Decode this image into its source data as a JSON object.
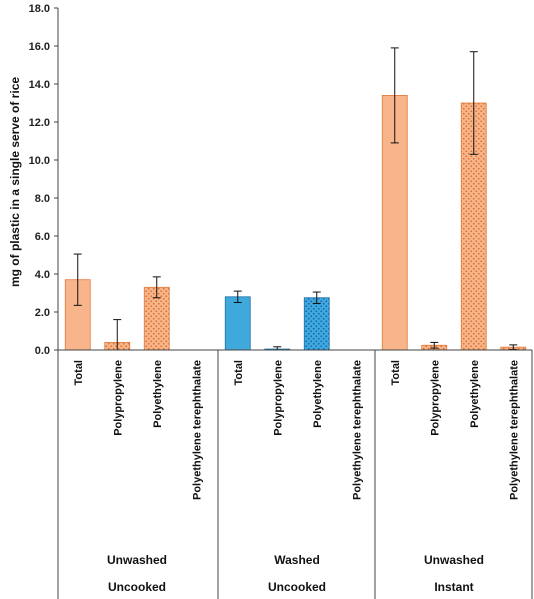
{
  "colors": {
    "orange_fill": "#f8b48a",
    "orange_edge": "#e07a3c",
    "orange_dot": "#d9722e",
    "blue_fill": "#3fa9dc",
    "blue_edge": "#1f6fa8",
    "blue_dot": "#1565b8",
    "axis": "#444444",
    "error_bar": "#111111"
  },
  "chart_data": {
    "type": "bar",
    "title": "",
    "ylabel": "mg of plastic in a single serve of rice",
    "ylim": [
      0,
      18
    ],
    "yticks": [
      "0.0",
      "2.0",
      "4.0",
      "6.0",
      "8.0",
      "10.0",
      "12.0",
      "14.0",
      "16.0",
      "18.0"
    ],
    "grid": false,
    "legend": "none",
    "groups": [
      {
        "label_top": "Unwashed",
        "label_bottom": "Uncooked",
        "bars": [
          {
            "category": "Total",
            "value": 3.7,
            "error": 1.35,
            "color": "orange",
            "pattern": "solid"
          },
          {
            "category": "Polypropylene",
            "value": 0.4,
            "error": 1.2,
            "color": "orange",
            "pattern": "dotted"
          },
          {
            "category": "Polyethylene",
            "value": 3.3,
            "error": 0.55,
            "color": "orange",
            "pattern": "dotted"
          },
          {
            "category": "Polyethylene terephthalate",
            "value": 0,
            "error": 0,
            "color": "orange",
            "pattern": "dotted"
          }
        ]
      },
      {
        "label_top": "Washed",
        "label_bottom": "Uncooked",
        "bars": [
          {
            "category": "Total",
            "value": 2.8,
            "error": 0.3,
            "color": "blue",
            "pattern": "solid"
          },
          {
            "category": "Polypropylene",
            "value": 0.05,
            "error": 0.12,
            "color": "blue",
            "pattern": "dotted"
          },
          {
            "category": "Polyethylene",
            "value": 2.75,
            "error": 0.3,
            "color": "blue",
            "pattern": "dotted"
          },
          {
            "category": "Polyethylene terephthalate",
            "value": 0,
            "error": 0,
            "color": "blue",
            "pattern": "dotted"
          }
        ]
      },
      {
        "label_top": "Unwashed",
        "label_bottom": "Instant",
        "bars": [
          {
            "category": "Total",
            "value": 13.4,
            "error": 2.5,
            "color": "orange",
            "pattern": "solid"
          },
          {
            "category": "Polypropylene",
            "value": 0.25,
            "error": 0.15,
            "color": "orange",
            "pattern": "dotted"
          },
          {
            "category": "Polyethylene",
            "value": 13.0,
            "error": 2.7,
            "color": "orange",
            "pattern": "dotted"
          },
          {
            "category": "Polyethylene terephthalate",
            "value": 0.15,
            "error": 0.12,
            "color": "orange",
            "pattern": "dotted"
          }
        ]
      }
    ]
  }
}
